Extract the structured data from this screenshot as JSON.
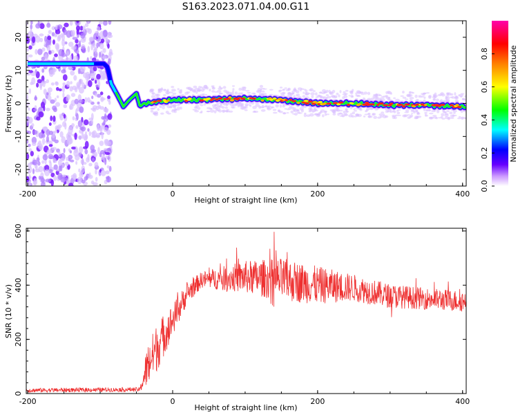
{
  "title": "S163.2023.071.04.00.G11",
  "chart_data": [
    {
      "type": "heatmap",
      "xlabel": "Height of straight line (km)",
      "ylabel": "Frequency (Hz)",
      "xlim": [
        -202,
        405
      ],
      "ylim": [
        -25,
        25
      ],
      "xticks": [
        -200,
        0,
        200,
        400
      ],
      "yticks": [
        -20,
        -10,
        0,
        10,
        20
      ],
      "colorbar": {
        "label": "Normalized spectral amplitude",
        "range": [
          0,
          1
        ],
        "ticks": [
          0.0,
          0.2,
          0.4,
          0.6,
          0.8
        ],
        "colors": [
          "#ffffff",
          "#cc99ff",
          "#6600ff",
          "#0000ff",
          "#00ffff",
          "#00ff00",
          "#ffff00",
          "#ff8000",
          "#ff0000",
          "#ff00aa"
        ]
      },
      "ridge": {
        "x": [
          -200,
          -95,
          -90,
          -85,
          -75,
          -68,
          -60,
          -50,
          -45,
          -40,
          -20,
          0,
          50,
          100,
          150,
          200,
          250,
          300,
          350,
          405
        ],
        "frequency": [
          12,
          12,
          11,
          6,
          2,
          -1,
          1,
          3,
          -1,
          0,
          0.5,
          1,
          1.2,
          1.5,
          1,
          0,
          0,
          -0.5,
          -0.5,
          -1
        ]
      },
      "noise_region": [
        -200,
        -85
      ]
    },
    {
      "type": "line",
      "xlabel": "Height of straight line (km)",
      "ylabel": "SNR (10 * v/v)",
      "xlim": [
        -202,
        405
      ],
      "ylim": [
        0,
        610
      ],
      "xticks": [
        -200,
        0,
        200,
        400
      ],
      "yticks": [
        0,
        200,
        400,
        600
      ],
      "color": "#ee3030",
      "envelope": {
        "x": [
          -200,
          -100,
          -45,
          -35,
          -20,
          0,
          20,
          40,
          100,
          150,
          200,
          250,
          300,
          350,
          405
        ],
        "mean": [
          12,
          14,
          15,
          100,
          180,
          270,
          370,
          420,
          430,
          420,
          400,
          390,
          360,
          350,
          340
        ],
        "spread": [
          8,
          8,
          8,
          80,
          90,
          60,
          40,
          30,
          60,
          80,
          70,
          50,
          45,
          40,
          40
        ]
      }
    }
  ]
}
